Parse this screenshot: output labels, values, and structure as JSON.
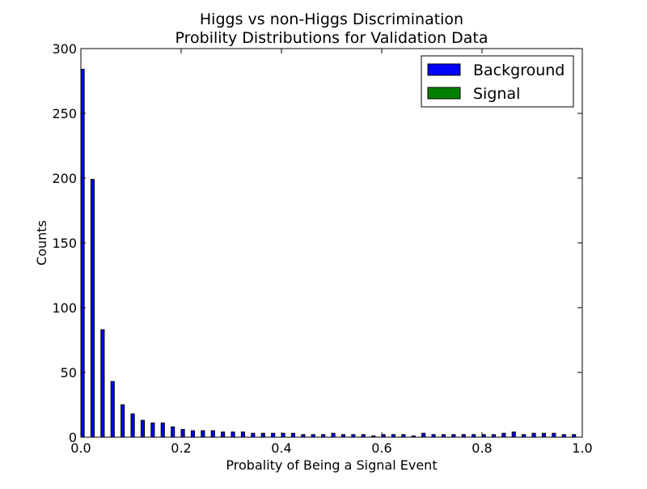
{
  "chart_data": {
    "type": "bar",
    "title": "Higgs vs non-Higgs Discrimination",
    "subtitle": "Probility Distributions for Validation Data",
    "xlabel": "Probality of Being a Signal Event",
    "ylabel": "Counts",
    "xlim": [
      0.0,
      1.0
    ],
    "ylim": [
      0,
      300
    ],
    "xticks": [
      0.0,
      0.2,
      0.4,
      0.6,
      0.8,
      1.0
    ],
    "xtick_labels": [
      "0.0",
      "0.2",
      "0.4",
      "0.6",
      "0.8",
      "1.0"
    ],
    "yticks": [
      0,
      50,
      100,
      150,
      200,
      250,
      300
    ],
    "ytick_labels": [
      "0",
      "50",
      "100",
      "150",
      "200",
      "250",
      "300"
    ],
    "bin_width": 0.02,
    "bins_start": [
      0.0,
      0.02,
      0.04,
      0.06,
      0.08,
      0.1,
      0.12,
      0.14,
      0.16,
      0.18,
      0.2,
      0.22,
      0.24,
      0.26,
      0.28,
      0.3,
      0.32,
      0.34,
      0.36,
      0.38,
      0.4,
      0.42,
      0.44,
      0.46,
      0.48,
      0.5,
      0.52,
      0.54,
      0.56,
      0.58,
      0.6,
      0.62,
      0.64,
      0.66,
      0.68,
      0.7,
      0.72,
      0.74,
      0.76,
      0.78,
      0.8,
      0.82,
      0.84,
      0.86,
      0.88,
      0.9,
      0.92,
      0.94,
      0.96,
      0.98
    ],
    "series": [
      {
        "name": "Background",
        "color": "#0000ff",
        "values": [
          284,
          199,
          83,
          43,
          25,
          18,
          13,
          11,
          11,
          8,
          6,
          5,
          5,
          5,
          4,
          4,
          4,
          3,
          3,
          3,
          3,
          3,
          2,
          2,
          2,
          3,
          2,
          2,
          2,
          1,
          2,
          2,
          2,
          1,
          3,
          2,
          2,
          2,
          2,
          2,
          2,
          2,
          3,
          4,
          2,
          3,
          3,
          3,
          2,
          2
        ]
      },
      {
        "name": "Signal",
        "color": "#008000",
        "values": [
          0,
          0,
          0,
          0,
          0,
          0,
          0,
          0,
          0,
          0,
          0,
          0,
          0,
          0,
          0,
          0,
          0,
          0,
          0,
          0,
          0,
          0,
          0,
          0,
          0,
          0,
          0,
          0,
          0,
          0,
          0,
          0,
          0,
          0,
          0,
          0,
          0,
          0,
          0,
          0,
          0,
          0,
          0,
          0,
          0,
          0,
          0,
          0,
          0,
          0
        ]
      }
    ],
    "legend": {
      "placement": "top-right",
      "entries": [
        "Background",
        "Signal"
      ]
    },
    "grid": false
  }
}
